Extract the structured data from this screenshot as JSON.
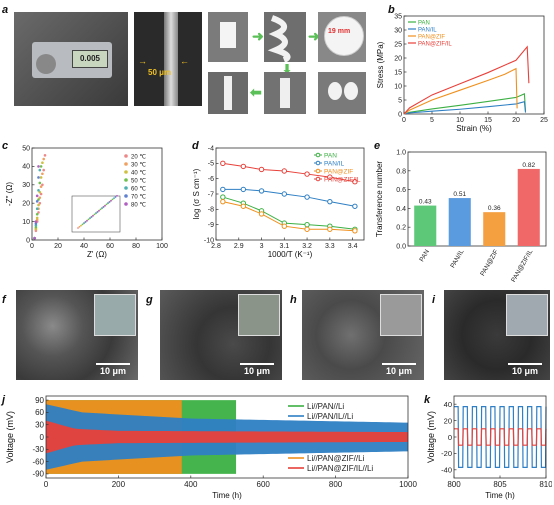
{
  "panels": {
    "a": {
      "label": "a",
      "scale_thickness": "50 μm",
      "diameter": "19 mm",
      "caliper_value": "0.005",
      "icon": "photo-sequence"
    },
    "b": {
      "label": "b"
    },
    "c": {
      "label": "c"
    },
    "d": {
      "label": "d"
    },
    "e": {
      "label": "e"
    },
    "f": {
      "label": "f",
      "scalebar": "10 μm"
    },
    "g": {
      "label": "g",
      "scalebar": "10 μm"
    },
    "h": {
      "label": "h",
      "scalebar": "10 μm"
    },
    "i": {
      "label": "i",
      "scalebar": "10 μm"
    },
    "j": {
      "label": "j"
    },
    "k": {
      "label": "k"
    }
  },
  "colors": {
    "PAN": "#3cb043",
    "PAN/IL": "#2e7fc4",
    "PAN@ZIF": "#f0901e",
    "PAN@ZIF/IL": "#e8403a"
  },
  "chart_data": [
    {
      "id": "b",
      "type": "line",
      "xlabel": "Strain (%)",
      "ylabel": "Stress (MPa)",
      "xlim": [
        0,
        25
      ],
      "ylim": [
        0,
        35
      ],
      "xticks": [
        0,
        5,
        10,
        15,
        20,
        25
      ],
      "yticks": [
        0,
        5,
        10,
        15,
        20,
        25,
        30,
        35
      ],
      "legend_position": "top-left",
      "series": [
        {
          "name": "PAN",
          "color": "#3cb043",
          "x": [
            0,
            1,
            5,
            10,
            15,
            20,
            21.5,
            21.7
          ],
          "y": [
            0,
            0.6,
            1.8,
            3.1,
            4.5,
            5.9,
            7.2,
            1.0
          ]
        },
        {
          "name": "PAN/IL",
          "color": "#2e7fc4",
          "x": [
            0,
            1,
            5,
            10,
            15,
            20,
            21.5,
            21.7
          ],
          "y": [
            0,
            0.4,
            1.0,
            1.7,
            2.6,
            3.6,
            4.4,
            0.5
          ]
        },
        {
          "name": "PAN@ZIF",
          "color": "#f0901e",
          "x": [
            0,
            1,
            5,
            10,
            15,
            18,
            20,
            20.2
          ],
          "y": [
            0,
            1.4,
            5.0,
            8.5,
            12.0,
            14.2,
            16.2,
            2.0
          ]
        },
        {
          "name": "PAN@ZIF/IL",
          "color": "#e8403a",
          "x": [
            0,
            1,
            5,
            10,
            15,
            20,
            22,
            22.3
          ],
          "y": [
            0,
            2.2,
            6.8,
            10.8,
            14.8,
            19.2,
            24.0,
            11.0
          ]
        }
      ]
    },
    {
      "id": "c",
      "type": "scatter",
      "xlabel": "Z' (Ω)",
      "ylabel": "-Z'' (Ω)",
      "xlim": [
        0,
        100
      ],
      "ylim": [
        0,
        50
      ],
      "xticks": [
        0,
        20,
        40,
        60,
        80,
        100
      ],
      "yticks": [
        0,
        10,
        20,
        30,
        40,
        50
      ],
      "legend_position": "top-right",
      "series": [
        {
          "name": "20 ℃",
          "color": "#e88",
          "x": [
            2,
            3,
            4,
            5,
            6,
            7,
            8,
            9,
            10
          ],
          "y": [
            1,
            5,
            10,
            15,
            20,
            25,
            30,
            38,
            46
          ]
        },
        {
          "name": "30 ℃",
          "color": "#f0a060",
          "x": [
            2,
            3,
            4,
            5,
            6,
            7,
            8,
            9
          ],
          "y": [
            1,
            6,
            11,
            17,
            23,
            29,
            36,
            44
          ]
        },
        {
          "name": "40 ℃",
          "color": "#d0c040",
          "x": [
            2,
            3,
            4,
            5,
            6,
            7,
            8
          ],
          "y": [
            1,
            6,
            12,
            19,
            26,
            34,
            42
          ]
        },
        {
          "name": "50 ℃",
          "color": "#70c050",
          "x": [
            2,
            3,
            4,
            5,
            6,
            7
          ],
          "y": [
            1,
            7,
            14,
            22,
            31,
            40
          ]
        },
        {
          "name": "60 ℃",
          "color": "#50b0b0",
          "x": [
            2,
            3,
            4,
            5,
            6
          ],
          "y": [
            1,
            8,
            17,
            27,
            38
          ]
        },
        {
          "name": "70 ℃",
          "color": "#6080d0",
          "x": [
            2,
            3,
            4,
            5
          ],
          "y": [
            1,
            9,
            21,
            34
          ]
        },
        {
          "name": "80 ℃",
          "color": "#b060c0",
          "x": [
            2,
            3,
            4,
            5
          ],
          "y": [
            1,
            10,
            24,
            40
          ]
        }
      ]
    },
    {
      "id": "d",
      "type": "line",
      "xlabel": "1000/T (K⁻¹)",
      "ylabel": "log (σ S cm⁻¹)",
      "xlim": [
        2.8,
        3.45
      ],
      "ylim": [
        -10,
        -4
      ],
      "xticks": [
        2.8,
        2.9,
        3.0,
        3.1,
        3.2,
        3.3,
        3.4
      ],
      "yticks": [
        -4,
        -5,
        -6,
        -7,
        -8,
        -9,
        -10
      ],
      "legend_position": "top-right",
      "series": [
        {
          "name": "PAN",
          "color": "#3cb043",
          "x": [
            2.83,
            2.92,
            3.0,
            3.1,
            3.2,
            3.3,
            3.41
          ],
          "y": [
            -7.2,
            -7.6,
            -8.1,
            -8.9,
            -9.0,
            -9.1,
            -9.3
          ]
        },
        {
          "name": "PAN/IL",
          "color": "#2e7fc4",
          "x": [
            2.83,
            2.92,
            3.0,
            3.1,
            3.2,
            3.3,
            3.41
          ],
          "y": [
            -6.7,
            -6.7,
            -6.8,
            -7.0,
            -7.2,
            -7.5,
            -7.8
          ]
        },
        {
          "name": "PAN@ZIF",
          "color": "#f0901e",
          "x": [
            2.83,
            2.92,
            3.0,
            3.1,
            3.2,
            3.3,
            3.41
          ],
          "y": [
            -7.5,
            -7.8,
            -8.3,
            -9.1,
            -9.3,
            -9.3,
            -9.4
          ]
        },
        {
          "name": "PAN@ZIF/IL",
          "color": "#e8403a",
          "x": [
            2.83,
            2.92,
            3.0,
            3.1,
            3.2,
            3.3,
            3.41
          ],
          "y": [
            -5.0,
            -5.2,
            -5.4,
            -5.5,
            -5.7,
            -5.9,
            -6.2
          ]
        }
      ]
    },
    {
      "id": "e",
      "type": "bar",
      "ylabel": "Transference number",
      "ylim": [
        0,
        1.0
      ],
      "yticks": [
        0,
        0.2,
        0.4,
        0.6,
        0.8,
        1.0
      ],
      "categories": [
        "PAN",
        "PAN/IL",
        "PAN@ZIF",
        "PAN@ZIF/IL"
      ],
      "values": [
        0.43,
        0.51,
        0.36,
        0.82
      ],
      "value_labels": [
        "0.43",
        "0.51",
        "0.36",
        "0.82"
      ],
      "colors": [
        "#5cc878",
        "#5a9be0",
        "#f5a040",
        "#f06868"
      ]
    },
    {
      "id": "j",
      "type": "area",
      "xlabel": "Time (h)",
      "ylabel": "Voltage (mV)",
      "xlim": [
        0,
        1000
      ],
      "ylim": [
        -100,
        100
      ],
      "xticks": [
        0,
        200,
        400,
        600,
        800,
        1000
      ],
      "yticks": [
        90,
        60,
        30,
        0,
        -30,
        -60,
        -90
      ],
      "legend_entries": [
        "Li//PAN//Li",
        "Li//PAN/IL//Li",
        "Li//PAN@ZIF//Li",
        "Li//PAN@ZIF/IL//Li"
      ],
      "series": [
        {
          "name": "Li//PAN//Li",
          "color": "#3cb043",
          "x": [
            0,
            525
          ],
          "amplitude_mV": [
            90,
            90
          ]
        },
        {
          "name": "Li//PAN/IL//Li",
          "color": "#2e7fc4",
          "x": [
            0,
            100,
            400,
            1000
          ],
          "amplitude_mV": [
            80,
            60,
            45,
            35
          ]
        },
        {
          "name": "Li//PAN@ZIF//Li",
          "color": "#f0901e",
          "x": [
            0,
            375
          ],
          "amplitude_mV": [
            90,
            90
          ]
        },
        {
          "name": "Li//PAN@ZIF/IL//Li",
          "color": "#e8403a",
          "x": [
            0,
            80,
            200,
            1000
          ],
          "amplitude_mV": [
            40,
            20,
            15,
            12
          ]
        }
      ]
    },
    {
      "id": "k",
      "type": "line",
      "xlabel": "Time (h)",
      "ylabel": "Voltage (mV)",
      "xlim": [
        800,
        810
      ],
      "ylim": [
        -50,
        50
      ],
      "xticks": [
        800,
        805,
        810
      ],
      "yticks": [
        40,
        20,
        0,
        -20,
        -40
      ],
      "series": [
        {
          "name": "Li//PAN/IL//Li",
          "color": "#2e7fc4",
          "amplitude_mV": 37,
          "period_h": 1
        },
        {
          "name": "Li//PAN@ZIF/IL//Li",
          "color": "#e8403a",
          "amplitude_mV": 10,
          "period_h": 1
        }
      ]
    }
  ]
}
